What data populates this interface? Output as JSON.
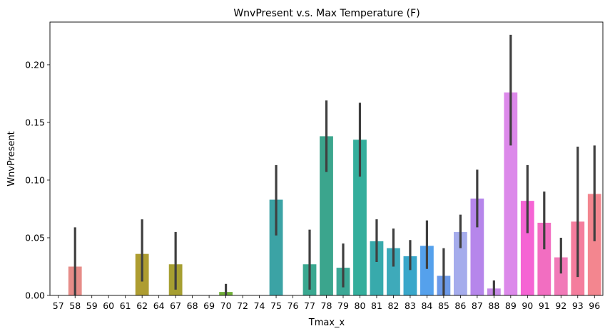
{
  "chart_data": {
    "type": "bar",
    "title": "WnvPresent v.s. Max Temperature (F)",
    "xlabel": "Tmax_x",
    "ylabel": "WnvPresent",
    "ylim": [
      0,
      0.237
    ],
    "yticks": [
      "0.00",
      "0.05",
      "0.10",
      "0.15",
      "0.20"
    ],
    "yticks_values": [
      0,
      0.05,
      0.1,
      0.15,
      0.2
    ],
    "grid": false,
    "legend": "none",
    "categories": [
      "57",
      "58",
      "59",
      "60",
      "61",
      "62",
      "64",
      "67",
      "68",
      "69",
      "70",
      "72",
      "74",
      "75",
      "76",
      "77",
      "78",
      "79",
      "80",
      "81",
      "82",
      "83",
      "84",
      "85",
      "86",
      "87",
      "88",
      "89",
      "90",
      "91",
      "92",
      "93",
      "96"
    ],
    "values": [
      0,
      0.025,
      0,
      0,
      0,
      0.036,
      0,
      0.027,
      0,
      0,
      0.003,
      0,
      0,
      0.083,
      0,
      0.027,
      0.138,
      0.024,
      0.135,
      0.047,
      0.041,
      0.034,
      0.043,
      0.017,
      0.055,
      0.084,
      0.006,
      0.176,
      0.082,
      0.063,
      0.033,
      0.064,
      0.088
    ],
    "err_low": [
      0,
      0,
      0,
      0,
      0,
      0.012,
      0,
      0.005,
      0,
      0,
      0,
      0,
      0,
      0.052,
      0,
      0.005,
      0.107,
      0.007,
      0.103,
      0.029,
      0.025,
      0.022,
      0.023,
      0,
      0.041,
      0.059,
      0,
      0.13,
      0.054,
      0.04,
      0.019,
      0.016,
      0.047
    ],
    "err_high": [
      0,
      0.059,
      0,
      0,
      0,
      0.066,
      0,
      0.055,
      0,
      0,
      0.01,
      0,
      0,
      0.113,
      0,
      0.057,
      0.169,
      0.045,
      0.167,
      0.066,
      0.058,
      0.048,
      0.065,
      0.041,
      0.07,
      0.109,
      0.013,
      0.226,
      0.113,
      0.09,
      0.05,
      0.129,
      0.13
    ],
    "colors": [
      "#f77189",
      "#e68c88",
      "#dc8932",
      "#c99532",
      "#ba9932",
      "#ae9d31",
      "#a5a031",
      "#a69f31",
      "#97a431",
      "#84a931",
      "#6fae37",
      "#50b131",
      "#34af52",
      "#3ba3a5",
      "#37b086",
      "#3aa890",
      "#3ba58d",
      "#3ca896",
      "#34ae9c",
      "#38aaac",
      "#3eaaba",
      "#39a7ca",
      "#55a1ec",
      "#6d9ae9",
      "#a5acec",
      "#b686eb",
      "#c68be7",
      "#dc89ea",
      "#f564d4",
      "#f26ec1",
      "#f17ab8",
      "#f47d9d",
      "#f3868f"
    ]
  }
}
